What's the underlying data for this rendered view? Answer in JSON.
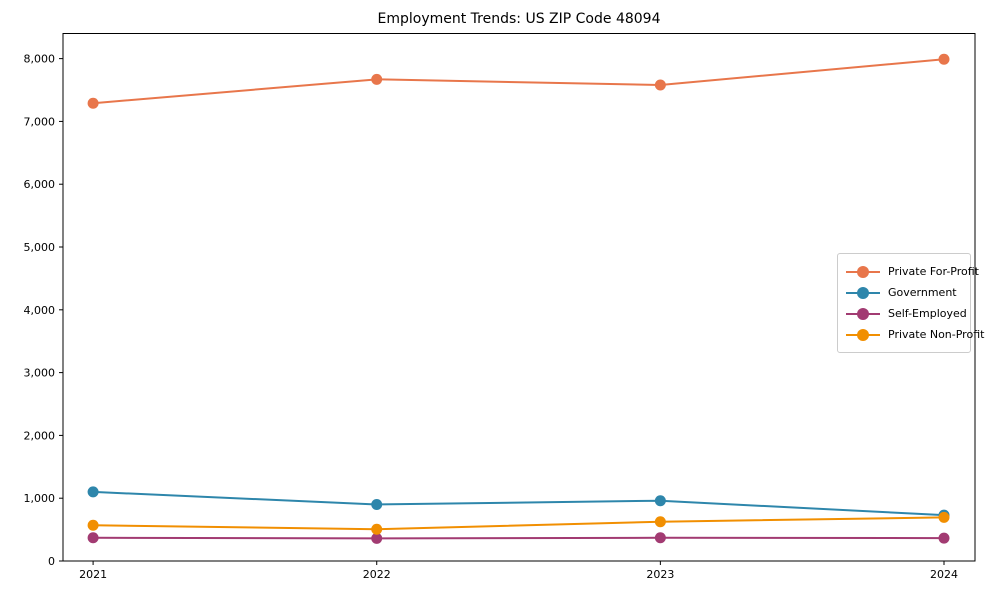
{
  "figure": {
    "background": "#ffffff",
    "text_color": "#000000",
    "axis_color": "#000000",
    "legend_border_color": "#cccccc"
  },
  "chart_data": {
    "type": "line",
    "title": "Employment Trends: US ZIP Code 48094",
    "xlabel": "",
    "ylabel": "",
    "categories": [
      "2021",
      "2022",
      "2023",
      "2024"
    ],
    "series": [
      {
        "name": "Private For-Profit",
        "color": "#E8764B",
        "values": [
          7290,
          7670,
          7580,
          7990
        ]
      },
      {
        "name": "Government",
        "color": "#2E86AB",
        "values": [
          1100,
          900,
          960,
          730
        ]
      },
      {
        "name": "Self-Employed",
        "color": "#A23B72",
        "values": [
          370,
          360,
          370,
          365
        ]
      },
      {
        "name": "Private Non-Profit",
        "color": "#F18F01",
        "values": [
          570,
          505,
          625,
          695
        ]
      }
    ],
    "ylim": [
      0,
      8400
    ],
    "yticks": [
      0,
      1000,
      2000,
      3000,
      4000,
      5000,
      6000,
      7000,
      8000
    ],
    "ytick_labels": [
      "0",
      "1,000",
      "2,000",
      "3,000",
      "4,000",
      "5,000",
      "6,000",
      "7,000",
      "8,000"
    ],
    "grid": false,
    "marker": "circle",
    "legend_position": "center right"
  }
}
